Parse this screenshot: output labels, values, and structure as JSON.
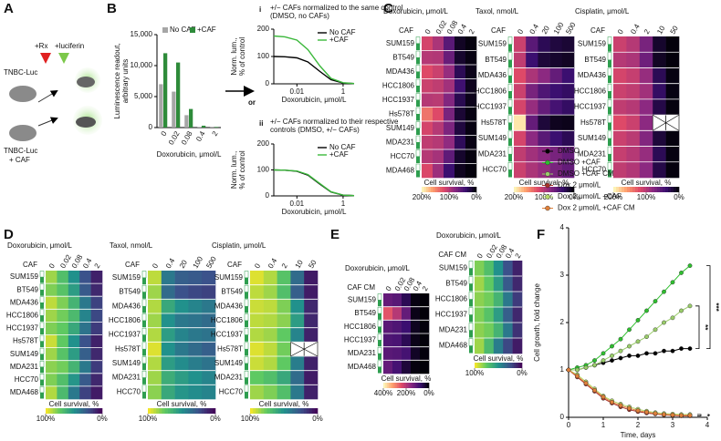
{
  "panels": {
    "labels": [
      "A",
      "B",
      "C",
      "D",
      "E",
      "F"
    ],
    "or": "or",
    "panel_A": [
      "TNBC-Luc",
      "+Rx",
      "+luciferin",
      "TNBC-Luc",
      "+ CAF"
    ]
  },
  "chart_data": [
    {
      "type": "bar",
      "xlabel": "Doxorubicin, μmol/L",
      "ylabel": [
        "Luminescence readout,",
        "arbitrary units"
      ],
      "categories": [
        "0",
        "0.02",
        "0.08",
        "0.4",
        "2"
      ],
      "series": [
        {
          "name": "No CAF",
          "color": "#a6a6a6",
          "values": [
            7000,
            5800,
            2000,
            100,
            50
          ]
        },
        {
          "name": "+CAF",
          "color": "#2e8b3a",
          "values": [
            12000,
            10500,
            3000,
            300,
            100
          ]
        }
      ],
      "ylim": [
        0,
        15000
      ],
      "yticks": [
        0,
        {
          "value": 5000,
          "label": "5,000"
        },
        {
          "value": 10000,
          "label": "10,000"
        },
        {
          "value": 15000,
          "label": "15,000"
        }
      ]
    },
    {
      "type": "line",
      "label": "i",
      "title": [
        "+/− CAFs normalized to the same control",
        "(DMSO, no CAFs)"
      ],
      "xlabel": "Doxorubicin, μmol/L",
      "ylabel": [
        "Norm. lum.,",
        "% of control"
      ],
      "xscale": "log",
      "x": [
        0.001,
        0.003,
        0.01,
        0.03,
        0.1,
        0.3,
        1,
        3
      ],
      "series": [
        {
          "name": "No CAF",
          "color": "#000000",
          "values": [
            100,
            99,
            95,
            80,
            45,
            15,
            3,
            1
          ]
        },
        {
          "name": "+CAF",
          "color": "#3cb83c",
          "values": [
            175,
            172,
            160,
            125,
            65,
            20,
            4,
            1
          ]
        }
      ],
      "xlim": [
        0.001,
        3
      ],
      "xticks": [
        0.01,
        1
      ],
      "ylim": [
        0,
        200
      ],
      "yticks": [
        0,
        100,
        200
      ]
    },
    {
      "type": "line",
      "label": "ii",
      "title": [
        "+/− CAFs normalized to their respective",
        "controls  (DMSO, +/− CAFs)"
      ],
      "xlabel": "Doxorubicin, μmol/L",
      "ylabel": [
        "Norm. lum.,",
        "% of control"
      ],
      "xscale": "log",
      "x": [
        0.001,
        0.003,
        0.01,
        0.03,
        0.1,
        0.3,
        1,
        3
      ],
      "series": [
        {
          "name": "No CAF",
          "color": "#000000",
          "values": [
            100,
            99,
            95,
            80,
            45,
            15,
            3,
            1
          ]
        },
        {
          "name": "+CAF",
          "color": "#3cb83c",
          "values": [
            100,
            99,
            96,
            82,
            47,
            16,
            3,
            1
          ]
        }
      ],
      "xlim": [
        0.001,
        3
      ],
      "xticks": [
        0.01,
        1
      ],
      "ylim": [
        0,
        200
      ],
      "yticks": [
        0,
        100,
        200
      ]
    },
    {
      "type": "heatmap",
      "title": "Doxorubicin, μmol/L",
      "column_label": "CAF",
      "colorbar_label": "Cell survival, %",
      "colormap": "magma",
      "columns": [
        "0",
        "0.02",
        "0.08",
        "0.4",
        "2"
      ],
      "rows": [
        "SUM159",
        "BT549",
        "MDA436",
        "HCC1806",
        "HCC1937",
        "Hs578T",
        "SUM149",
        "MDA231",
        "HCC70",
        "MDA468"
      ],
      "values": [
        [
          115,
          95,
          55,
          12,
          4
        ],
        [
          100,
          98,
          62,
          15,
          5
        ],
        [
          120,
          110,
          85,
          30,
          8
        ],
        [
          110,
          105,
          90,
          42,
          10
        ],
        [
          100,
          102,
          75,
          28,
          8
        ],
        [
          140,
          120,
          70,
          18,
          5
        ],
        [
          115,
          100,
          72,
          22,
          5
        ],
        [
          105,
          100,
          82,
          32,
          6
        ],
        [
          100,
          92,
          58,
          15,
          4
        ],
        [
          118,
          88,
          40,
          10,
          3
        ]
      ],
      "vlim": [
        0,
        200
      ],
      "colorbar_ticks": [
        {
          "value": 200,
          "label": "200%"
        },
        {
          "value": 100,
          "label": "100%"
        },
        {
          "value": 0,
          "label": "0%"
        }
      ]
    },
    {
      "type": "heatmap",
      "title": "Taxol, nmol/L",
      "column_label": "CAF",
      "colorbar_label": "Cell survival, %",
      "colormap": "magma",
      "columns": [
        "0",
        "0.4",
        "20",
        "100",
        "500"
      ],
      "rows": [
        "SUM159",
        "BT549",
        "MDA436",
        "HCC1806",
        "HCC1937",
        "Hs578T",
        "SUM149",
        "MDA231",
        "HCC70"
      ],
      "values": [
        [
          110,
          55,
          30,
          22,
          18
        ],
        [
          105,
          40,
          20,
          15,
          12
        ],
        [
          120,
          95,
          80,
          60,
          40
        ],
        [
          110,
          70,
          50,
          40,
          35
        ],
        [
          115,
          85,
          60,
          45,
          35
        ],
        [
          190,
          60,
          20,
          10,
          8
        ],
        [
          115,
          80,
          55,
          40,
          30
        ],
        [
          105,
          90,
          80,
          70,
          60
        ],
        [
          110,
          95,
          85,
          70,
          60
        ]
      ],
      "vlim": [
        0,
        200
      ],
      "colorbar_ticks": [
        {
          "value": 200,
          "label": "200%"
        },
        {
          "value": 100,
          "label": "100%"
        },
        {
          "value": 0,
          "label": "0%"
        }
      ]
    },
    {
      "type": "heatmap",
      "title": "Cisplatin, μmol/L",
      "column_label": "CAF",
      "colorbar_label": "Cell survival, %",
      "colormap": "magma",
      "columns": [
        "0",
        "0.4",
        "2",
        "10",
        "50"
      ],
      "rows": [
        "SUM159",
        "BT549",
        "MDA436",
        "HCC1806",
        "HCC1937",
        "Hs578T",
        "SUM149",
        "MDA231",
        "HCC70"
      ],
      "values": [
        [
          110,
          100,
          70,
          15,
          3
        ],
        [
          100,
          95,
          65,
          12,
          3
        ],
        [
          115,
          108,
          85,
          30,
          5
        ],
        [
          110,
          105,
          90,
          35,
          5
        ],
        [
          105,
          100,
          80,
          25,
          4
        ],
        [
          120,
          110,
          80,
          null,
          null
        ],
        [
          110,
          102,
          75,
          20,
          4
        ],
        [
          108,
          100,
          85,
          30,
          5
        ],
        [
          105,
          98,
          80,
          25,
          4
        ]
      ],
      "vlim": [
        0,
        200
      ],
      "colorbar_ticks": [
        {
          "value": 200,
          "label": "200%"
        },
        {
          "value": 100,
          "label": "100%"
        },
        {
          "value": 0,
          "label": "0%"
        }
      ]
    },
    {
      "type": "heatmap",
      "title": "Doxorubicin, μmol/L",
      "column_label": "CAF",
      "colorbar_label": "Cell survival, %",
      "colormap": "viridis",
      "columns": [
        "0",
        "0.02",
        "0.08",
        "0.4",
        "2"
      ],
      "rows": [
        "SUM159",
        "BT549",
        "MDA436",
        "HCC1806",
        "HCC1937",
        "Hs578T",
        "SUM149",
        "MDA231",
        "HCC70",
        "MDA468"
      ],
      "values": [
        [
          85,
          70,
          50,
          25,
          10
        ],
        [
          80,
          72,
          55,
          28,
          12
        ],
        [
          90,
          80,
          65,
          40,
          20
        ],
        [
          85,
          78,
          68,
          45,
          22
        ],
        [
          80,
          75,
          60,
          38,
          18
        ],
        [
          92,
          75,
          50,
          25,
          10
        ],
        [
          85,
          72,
          55,
          30,
          12
        ],
        [
          82,
          78,
          65,
          40,
          18
        ],
        [
          80,
          70,
          52,
          28,
          12
        ],
        [
          88,
          68,
          40,
          20,
          8
        ]
      ],
      "vlim": [
        0,
        100
      ],
      "colorbar_ticks": [
        {
          "value": 100,
          "label": "100%"
        },
        {
          "value": 0,
          "label": "0%"
        }
      ]
    },
    {
      "type": "heatmap",
      "title": "Taxol, nmol/L",
      "column_label": "CAF",
      "colorbar_label": "Cell survival, %",
      "colormap": "viridis",
      "columns": [
        "0",
        "0.4",
        "20",
        "100",
        "500"
      ],
      "rows": [
        "SUM159",
        "BT549",
        "MDA436",
        "HCC1806",
        "HCC1937",
        "Hs578T",
        "SUM149",
        "MDA231",
        "HCC70"
      ],
      "values": [
        [
          90,
          40,
          30,
          28,
          25
        ],
        [
          85,
          35,
          25,
          22,
          20
        ],
        [
          88,
          60,
          50,
          45,
          40
        ],
        [
          85,
          50,
          40,
          38,
          35
        ],
        [
          88,
          55,
          45,
          40,
          38
        ],
        [
          95,
          50,
          40,
          35,
          30
        ],
        [
          88,
          55,
          48,
          42,
          38
        ],
        [
          85,
          62,
          55,
          50,
          45
        ],
        [
          82,
          60,
          52,
          48,
          45
        ]
      ],
      "vlim": [
        0,
        100
      ],
      "colorbar_ticks": [
        {
          "value": 100,
          "label": "100%"
        },
        {
          "value": 0,
          "label": "0%"
        }
      ]
    },
    {
      "type": "heatmap",
      "title": "Cisplatin, μmol/L",
      "column_label": "CAF",
      "colorbar_label": "Cell survival, %",
      "colormap": "viridis",
      "columns": [
        "0",
        "0.4",
        "2",
        "10",
        "50"
      ],
      "rows": [
        "SUM159",
        "BT549",
        "MDA436",
        "HCC1806",
        "HCC1937",
        "Hs578T",
        "SUM149",
        "MDA231",
        "HCC70"
      ],
      "values": [
        [
          95,
          88,
          72,
          35,
          8
        ],
        [
          90,
          85,
          70,
          30,
          8
        ],
        [
          92,
          90,
          80,
          50,
          12
        ],
        [
          90,
          88,
          82,
          55,
          12
        ],
        [
          88,
          85,
          75,
          45,
          10
        ],
        [
          95,
          90,
          78,
          null,
          null
        ],
        [
          92,
          88,
          75,
          42,
          10
        ],
        [
          75,
          70,
          60,
          35,
          8
        ],
        [
          85,
          80,
          70,
          40,
          10
        ]
      ],
      "vlim": [
        0,
        100
      ],
      "colorbar_ticks": [
        {
          "value": 100,
          "label": "100%"
        },
        {
          "value": 0,
          "label": "0%"
        }
      ]
    },
    {
      "type": "heatmap",
      "title": "Doxorubicin, μmol/L",
      "column_label": "CAF CM",
      "colorbar_label": "Cell survival, %",
      "colormap": "magma",
      "columns": [
        "0",
        "0.02",
        "0.08",
        "0.4",
        "2"
      ],
      "rows": [
        "SUM159",
        "BT549",
        "HCC1806",
        "HCC1937",
        "MDA231",
        "MDA468"
      ],
      "values": [
        [
          120,
          110,
          60,
          10,
          3
        ],
        [
          250,
          200,
          120,
          15,
          3
        ],
        [
          110,
          100,
          80,
          20,
          5
        ],
        [
          100,
          95,
          60,
          15,
          4
        ],
        [
          110,
          105,
          90,
          25,
          5
        ],
        [
          120,
          90,
          40,
          8,
          2
        ]
      ],
      "vlim": [
        0,
        400
      ],
      "colorbar_ticks": [
        {
          "value": 400,
          "label": "400%"
        },
        {
          "value": 200,
          "label": "200%"
        },
        {
          "value": 0,
          "label": "0%"
        }
      ]
    },
    {
      "type": "heatmap",
      "title": "Doxorubicin, μmol/L",
      "column_label": "CAF CM",
      "colorbar_label": "Cell survival, %",
      "colormap": "viridis",
      "columns": [
        "0",
        "0.02",
        "0.08",
        "0.4",
        "2"
      ],
      "rows": [
        "SUM159",
        "BT549",
        "HCC1806",
        "HCC1937",
        "MDA231",
        "MDA468"
      ],
      "values": [
        [
          80,
          70,
          50,
          25,
          10
        ],
        [
          85,
          75,
          55,
          28,
          12
        ],
        [
          82,
          78,
          65,
          40,
          18
        ],
        [
          80,
          72,
          55,
          30,
          12
        ],
        [
          82,
          78,
          65,
          40,
          15
        ],
        [
          85,
          68,
          42,
          22,
          8
        ]
      ],
      "vlim": [
        0,
        100
      ],
      "colorbar_ticks": [
        {
          "value": 100,
          "label": "100%"
        },
        {
          "value": 0,
          "label": "0%"
        }
      ]
    },
    {
      "type": "line",
      "xlabel": "Time, days",
      "ylabel": [
        "Cell growth, fold change"
      ],
      "markers": true,
      "x": [
        0,
        0.25,
        0.5,
        0.75,
        1,
        1.25,
        1.5,
        1.75,
        2,
        2.25,
        2.5,
        2.75,
        3,
        3.25,
        3.5
      ],
      "series": [
        {
          "name": "DMSO",
          "color": "#000000",
          "values": [
            1,
            1,
            1.05,
            1.1,
            1.15,
            1.2,
            1.25,
            1.3,
            1.3,
            1.35,
            1.35,
            1.4,
            1.4,
            1.45,
            1.45
          ]
        },
        {
          "name": "DMSO +CAF",
          "color": "#2fbf2f",
          "values": [
            1,
            1.05,
            1.1,
            1.2,
            1.35,
            1.5,
            1.65,
            1.85,
            2.05,
            2.25,
            2.45,
            2.65,
            2.85,
            3.05,
            3.2
          ]
        },
        {
          "name": "DMSO +CAF CM",
          "color": "#9acd6a",
          "values": [
            1,
            1,
            1.05,
            1.1,
            1.2,
            1.3,
            1.4,
            1.5,
            1.6,
            1.7,
            1.85,
            2,
            2.1,
            2.25,
            2.35
          ]
        },
        {
          "name": "Dox 2 μmol/L",
          "color": "#a8322a",
          "values": [
            1,
            0.85,
            0.7,
            0.55,
            0.4,
            0.3,
            0.22,
            0.16,
            0.12,
            0.09,
            0.07,
            0.05,
            0.04,
            0.03,
            0.03
          ]
        },
        {
          "name": "Dox 2 μmol/L +CAF",
          "color": "#b5d86a",
          "values": [
            1,
            0.9,
            0.75,
            0.6,
            0.45,
            0.35,
            0.28,
            0.22,
            0.17,
            0.13,
            0.1,
            0.08,
            0.07,
            0.06,
            0.06
          ]
        },
        {
          "name": "Dox 2 μmol/L +CAF CM",
          "color": "#e0803a",
          "values": [
            1,
            0.87,
            0.72,
            0.57,
            0.43,
            0.32,
            0.25,
            0.19,
            0.14,
            0.11,
            0.08,
            0.06,
            0.05,
            0.04,
            0.04
          ]
        }
      ],
      "xlim": [
        0,
        4
      ],
      "xticks": [
        0,
        1,
        2,
        3,
        4
      ],
      "ylim": [
        0,
        4
      ],
      "yticks": [
        0,
        1,
        2,
        3,
        4
      ],
      "annotations": [
        "***",
        "**",
        "*"
      ]
    }
  ]
}
